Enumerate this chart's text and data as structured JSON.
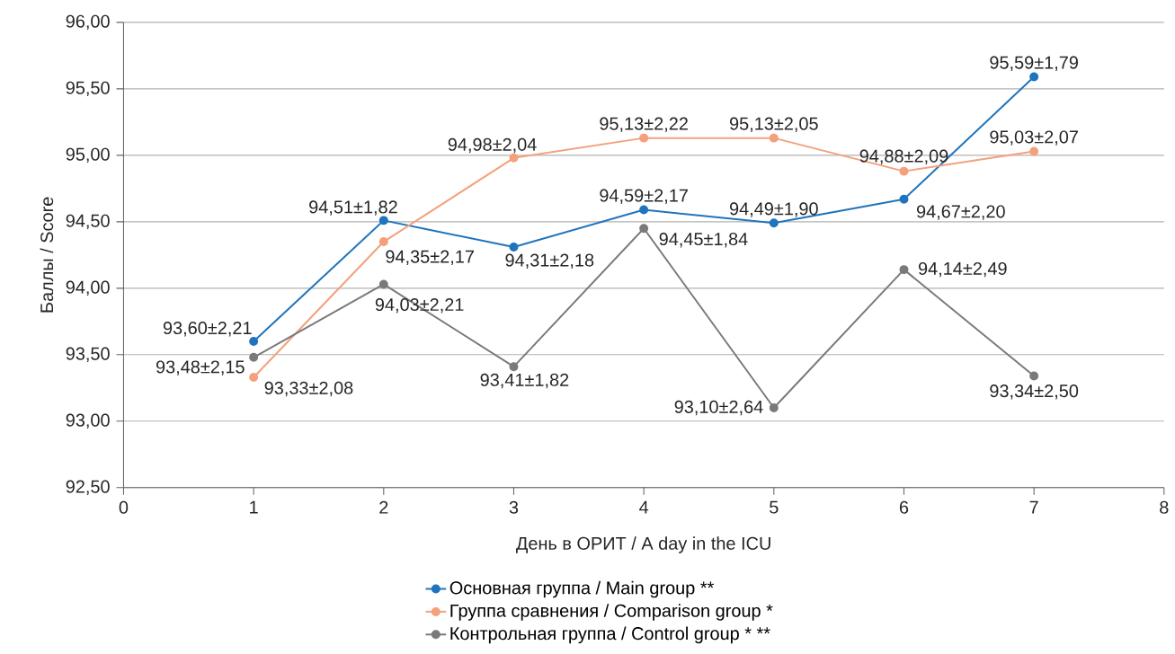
{
  "chart_data": {
    "type": "line",
    "xlabel": "День в ОРИТ / A day in the ICU",
    "ylabel": "Баллы / Score",
    "x": [
      1,
      2,
      3,
      4,
      5,
      6,
      7
    ],
    "xlim": [
      0,
      8
    ],
    "xticks": [
      0,
      1,
      2,
      3,
      4,
      5,
      6,
      7,
      8
    ],
    "ylim": [
      92.5,
      96
    ],
    "yticks": [
      {
        "value": 92.5,
        "label": "92,50"
      },
      {
        "value": 93,
        "label": "93,00"
      },
      {
        "value": 93.5,
        "label": "93,50"
      },
      {
        "value": 94,
        "label": "94,00"
      },
      {
        "value": 94.5,
        "label": "94,50"
      },
      {
        "value": 95,
        "label": "95,00"
      },
      {
        "value": 95.5,
        "label": "95,50"
      },
      {
        "value": 96,
        "label": "96,00"
      }
    ],
    "grid": "y",
    "legend": "bottom",
    "marker": "circle",
    "line_style": "solid",
    "series": [
      {
        "name": "Основная группа / Main group **",
        "color": "#1f74bd",
        "values": [
          93.6,
          94.51,
          94.31,
          94.59,
          94.49,
          94.67,
          95.59
        ],
        "value_labels": [
          "93,60±2,21",
          "94,51±1,82",
          "94,31±2,18",
          "94,59±2,17",
          "94,49±1,90",
          "94,67±2,20",
          "95,59±1,79"
        ]
      },
      {
        "name": "Группа сравнения / Comparison group *",
        "color": "#f4a07c",
        "values": [
          93.33,
          94.35,
          94.98,
          95.13,
          95.13,
          94.88,
          95.03
        ],
        "value_labels": [
          "93,33±2,08",
          "94,35±2,17",
          "94,98±2,04",
          "95,13±2,22",
          "95,13±2,05",
          "94,88±2,09",
          "95,03±2,07"
        ]
      },
      {
        "name": "Контрольная группа / Control group * **",
        "color": "#7a7a7a",
        "values": [
          93.48,
          94.03,
          93.41,
          94.45,
          93.1,
          94.14,
          93.34
        ],
        "value_labels": [
          "93,48±2,15",
          "94,03±2,21",
          "93,41±1,82",
          "94,45±1,84",
          "93,10±2,64",
          "94,14±2,49",
          "93,34±2,50"
        ]
      }
    ]
  }
}
